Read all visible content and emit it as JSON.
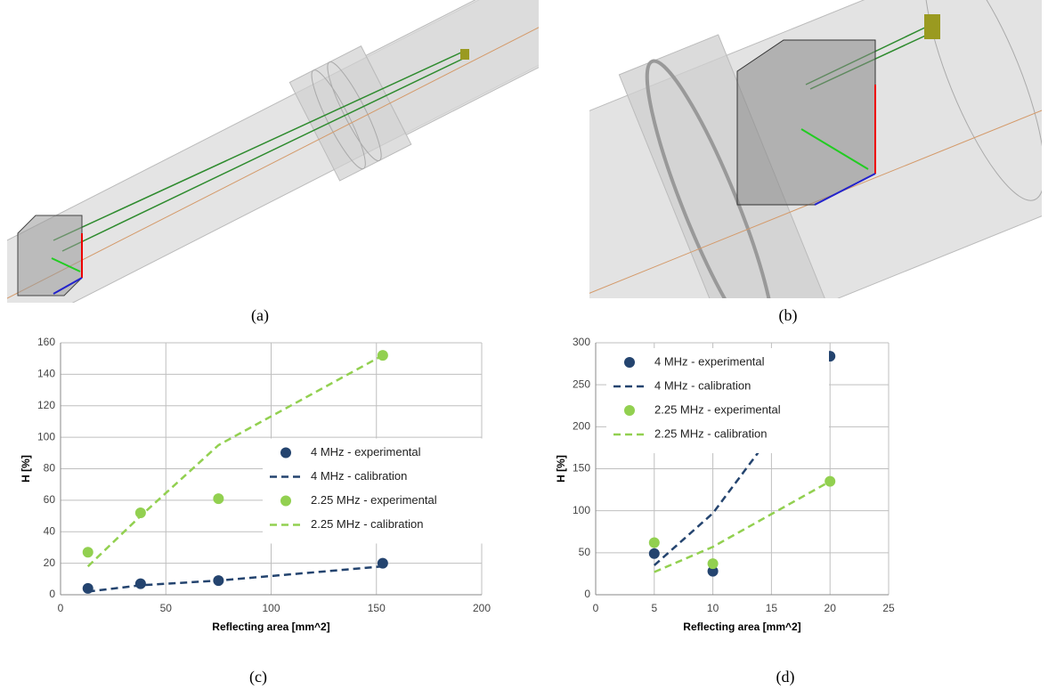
{
  "captions": [
    "(a)",
    "(b)",
    "(c)",
    "(d)"
  ],
  "chart_data": [
    {
      "type": "line",
      "x_label": "Reflecting area [mm^2]",
      "y_label": "H [%]",
      "x": [
        13,
        38,
        75,
        153
      ],
      "xlim": [
        0,
        200
      ],
      "xticks": [
        0,
        50,
        100,
        150,
        200
      ],
      "ylim": [
        0,
        160
      ],
      "yticks": [
        0,
        20,
        40,
        60,
        80,
        100,
        120,
        140,
        160
      ],
      "grid": true,
      "legend": "center right",
      "series": [
        {
          "name": "4 MHz - experimental",
          "color": "#24446f",
          "style": "marker",
          "values": [
            4,
            7,
            9,
            20
          ]
        },
        {
          "name": "4 MHz - calibration",
          "color": "#24446f",
          "style": "dashed",
          "values": [
            2,
            6,
            9,
            18
          ]
        },
        {
          "name": "2.25 MHz - experimental",
          "color": "#92d050",
          "style": "marker",
          "values": [
            27,
            52,
            61,
            152
          ]
        },
        {
          "name": "2.25 MHz - calibration",
          "color": "#92d050",
          "style": "dashed",
          "values": [
            18,
            50,
            95,
            152
          ]
        }
      ]
    },
    {
      "type": "line",
      "x_label": "Reflecting area [mm^2]",
      "y_label": "H [%]",
      "x": [
        5,
        10,
        20
      ],
      "xlim": [
        0,
        25
      ],
      "xticks": [
        0,
        5,
        10,
        15,
        20,
        25
      ],
      "ylim": [
        0,
        300
      ],
      "yticks": [
        0,
        50,
        100,
        150,
        200,
        250,
        300
      ],
      "grid": true,
      "legend": "upper left",
      "series": [
        {
          "name": "4 MHz - experimental",
          "color": "#24446f",
          "style": "marker",
          "values": [
            49,
            28,
            284
          ]
        },
        {
          "name": "4 MHz - calibration",
          "color": "#24446f",
          "style": "dashed",
          "values": [
            35,
            97,
            284
          ]
        },
        {
          "name": "2.25 MHz - experimental",
          "color": "#92d050",
          "style": "marker",
          "values": [
            62,
            37,
            135
          ]
        },
        {
          "name": "2.25 MHz - calibration",
          "color": "#92d050",
          "style": "dashed",
          "values": [
            27,
            57,
            135
          ]
        }
      ]
    }
  ]
}
